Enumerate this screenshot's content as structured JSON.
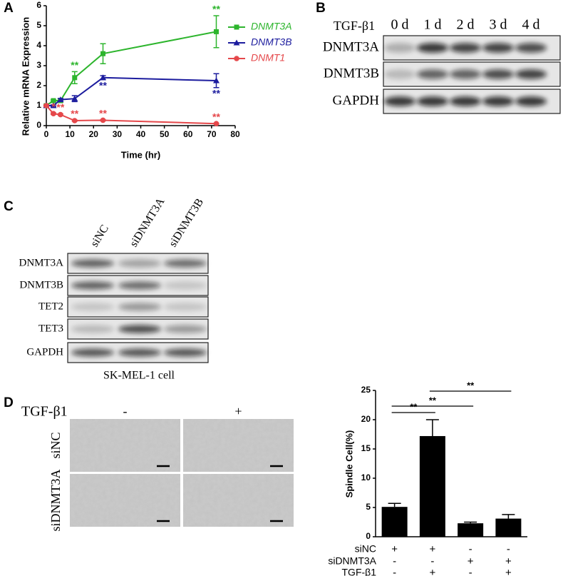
{
  "panel_labels": [
    "A",
    "B",
    "C",
    "D"
  ],
  "chart_data": [
    {
      "type": "line",
      "x_label": "Time (hr)",
      "y_label": "Relative mRNA Expression",
      "x": [
        0,
        3,
        6,
        12,
        24,
        72
      ],
      "xlim": [
        0,
        80
      ],
      "xticks": [
        0,
        10,
        20,
        30,
        40,
        50,
        60,
        70,
        80
      ],
      "ylim": [
        0,
        6
      ],
      "yticks": [
        0,
        1,
        2,
        3,
        4,
        5,
        6
      ],
      "series": [
        {
          "name": "DNMT3A",
          "color": "#2db52d",
          "marker": "square",
          "values": [
            1.0,
            1.25,
            1.25,
            2.4,
            3.6,
            4.7
          ],
          "errors": [
            0.05,
            0.04,
            0.08,
            0.3,
            0.5,
            0.8
          ],
          "significance": [
            null,
            null,
            null,
            "**",
            null,
            "**"
          ],
          "significance_position": "above"
        },
        {
          "name": "DNMT3B",
          "color": "#1c1c9e",
          "marker": "triangle",
          "values": [
            1.0,
            1.0,
            1.3,
            1.35,
            2.4,
            2.25
          ],
          "errors": [
            0.05,
            0.04,
            0.06,
            0.15,
            0.1,
            0.35
          ],
          "significance": [
            null,
            null,
            null,
            null,
            "**",
            "**"
          ],
          "significance_position": "below"
        },
        {
          "name": "DNMT1",
          "color": "#e5484b",
          "marker": "circle",
          "values": [
            1.0,
            0.6,
            0.55,
            0.25,
            0.27,
            0.1
          ],
          "errors": [
            0.05,
            0.04,
            0.04,
            0.03,
            0.03,
            0.02
          ],
          "significance": [
            null,
            "*",
            "**",
            "**",
            "**",
            "**"
          ],
          "significance_position": "above"
        }
      ]
    },
    {
      "type": "bar",
      "y_label": "Spindle Cell(%)",
      "values": [
        5.1,
        17.2,
        2.3,
        3.1
      ],
      "errors": [
        0.6,
        2.8,
        0.2,
        0.7
      ],
      "color": "#000000",
      "ylim": [
        0,
        25
      ],
      "yticks": [
        0,
        5,
        10,
        15,
        20,
        25
      ],
      "comparisons": [
        {
          "label": "**",
          "between": [
            0,
            1
          ]
        },
        {
          "label": "**",
          "between": [
            0,
            2
          ]
        },
        {
          "label": "**",
          "between": [
            1,
            3
          ]
        }
      ],
      "conditions": [
        {
          "name": "siNC",
          "signs": [
            "+",
            "+",
            "-",
            "-"
          ]
        },
        {
          "name": "siDNMT3A",
          "signs": [
            "-",
            "-",
            "+",
            "+"
          ]
        },
        {
          "name": "TGF-β1",
          "signs": [
            "-",
            "+",
            "-",
            "+"
          ]
        }
      ]
    }
  ],
  "blot_b": {
    "treatment": "TGF-β1",
    "lanes": [
      "0 d",
      "1 d",
      "2 d",
      "3 d",
      "4 d"
    ],
    "rows": [
      {
        "name": "DNMT3A",
        "intensity": [
          0.25,
          0.8,
          0.75,
          0.75,
          0.7
        ]
      },
      {
        "name": "DNMT3B",
        "intensity": [
          0.2,
          0.6,
          0.6,
          0.7,
          0.75
        ]
      },
      {
        "name": "GAPDH",
        "intensity": [
          0.8,
          0.8,
          0.8,
          0.8,
          0.8
        ]
      }
    ]
  },
  "blot_c": {
    "lanes": [
      "siNC",
      "siDNMT3A",
      "siDNMT3B"
    ],
    "rows": [
      {
        "name": "DNMT3A",
        "intensity": [
          0.6,
          0.3,
          0.55
        ]
      },
      {
        "name": "DNMT3B",
        "intensity": [
          0.6,
          0.55,
          0.15
        ]
      },
      {
        "name": "TET2",
        "intensity": [
          0.15,
          0.35,
          0.15
        ]
      },
      {
        "name": "TET3",
        "intensity": [
          0.2,
          0.7,
          0.35
        ]
      },
      {
        "name": "GAPDH",
        "intensity": [
          0.65,
          0.65,
          0.65
        ]
      }
    ],
    "caption": "SK-MEL-1 cell"
  },
  "micrographs": {
    "treatment": "TGF-β1",
    "columns": [
      "-",
      "+"
    ],
    "rows": [
      "siNC",
      "siDNMT3A"
    ]
  }
}
